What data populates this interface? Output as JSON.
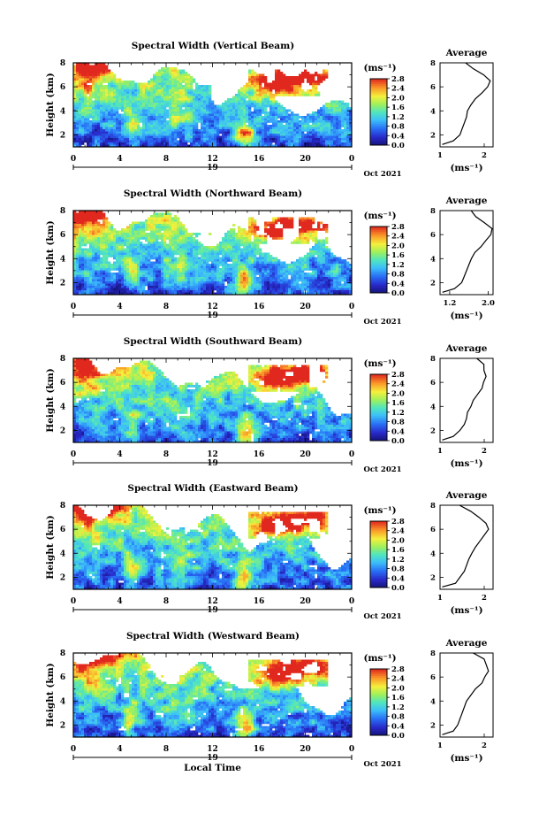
{
  "chart_data": [
    {
      "type": "heatmap",
      "title": "Spectral Width (Vertical Beam)",
      "ylabel": "Height (km)",
      "xlabel": "",
      "xlim": [
        0,
        24
      ],
      "ylim": [
        1,
        8
      ],
      "x_ticks": [
        "0",
        "4",
        "8",
        "12",
        "16",
        "20",
        "0"
      ],
      "y_ticks": [
        "2",
        "4",
        "6",
        "8"
      ],
      "day_label": "19",
      "date_label": "Oct 2021",
      "colorbar": {
        "unit": "(ms⁻¹)",
        "min": 0.0,
        "max": 2.8,
        "ticks": [
          "2.8",
          "2.4",
          "2.0",
          "1.6",
          "1.2",
          "0.8",
          "0.4",
          "0.0"
        ]
      },
      "average": {
        "title": "Average",
        "xlabel": "(ms⁻¹)",
        "x_ticks": [
          "1",
          "2"
        ],
        "xlim": [
          1,
          2.2
        ],
        "y_ticks": [
          "2",
          "4",
          "6",
          "8"
        ],
        "height_km": [
          1.2,
          1.5,
          2,
          2.5,
          3,
          3.5,
          4,
          4.5,
          5,
          5.5,
          6,
          6.5,
          7,
          7.5,
          8
        ],
        "width": [
          1.05,
          1.3,
          1.45,
          1.5,
          1.55,
          1.6,
          1.62,
          1.7,
          1.8,
          1.95,
          2.05,
          2.15,
          1.95,
          1.8,
          1.6
        ]
      }
    },
    {
      "type": "heatmap",
      "title": "Spectral Width (Northward Beam)",
      "ylabel": "Height (km)",
      "xlabel": "",
      "xlim": [
        0,
        24
      ],
      "ylim": [
        1,
        8
      ],
      "x_ticks": [
        "0",
        "4",
        "8",
        "12",
        "16",
        "20",
        "0"
      ],
      "y_ticks": [
        "2",
        "4",
        "6",
        "8"
      ],
      "day_label": "19",
      "date_label": "Oct 2021",
      "colorbar": {
        "unit": "(ms⁻¹)",
        "min": 0.0,
        "max": 2.8,
        "ticks": [
          "2.8",
          "2.4",
          "2.0",
          "1.6",
          "1.2",
          "0.8",
          "0.4",
          "0.0"
        ]
      },
      "average": {
        "title": "Average",
        "xlabel": "(ms⁻¹)",
        "x_ticks": [
          "1.2",
          "2.0"
        ],
        "xlim": [
          1,
          2.1
        ],
        "y_ticks": [
          "2",
          "4",
          "6",
          "8"
        ],
        "height_km": [
          1.2,
          1.5,
          2,
          2.5,
          3,
          3.5,
          4,
          4.5,
          5,
          5.5,
          6,
          6.5,
          7,
          7.5,
          8
        ],
        "width": [
          1.05,
          1.3,
          1.45,
          1.5,
          1.55,
          1.6,
          1.65,
          1.72,
          1.85,
          1.95,
          2.05,
          2.05,
          1.9,
          1.75,
          1.6
        ]
      }
    },
    {
      "type": "heatmap",
      "title": "Spectral Width (Southward Beam)",
      "ylabel": "Height (km)",
      "xlabel": "",
      "xlim": [
        0,
        24
      ],
      "ylim": [
        1,
        8
      ],
      "x_ticks": [
        "0",
        "4",
        "8",
        "12",
        "16",
        "20",
        "0"
      ],
      "y_ticks": [
        "2",
        "4",
        "6",
        "8"
      ],
      "day_label": "19",
      "date_label": "Oct 2021",
      "colorbar": {
        "unit": "(ms⁻¹)",
        "min": 0.0,
        "max": 2.8,
        "ticks": [
          "2.8",
          "2.4",
          "2.0",
          "1.6",
          "1.2",
          "0.8",
          "0.4",
          "0.0"
        ]
      },
      "average": {
        "title": "Average",
        "xlabel": "(ms⁻¹)",
        "x_ticks": [
          "1",
          "2"
        ],
        "xlim": [
          1,
          2.2
        ],
        "y_ticks": [
          "2",
          "4",
          "6",
          "8"
        ],
        "height_km": [
          1.2,
          1.5,
          2,
          2.5,
          3,
          3.5,
          4,
          4.5,
          5,
          5.5,
          6,
          6.5,
          7,
          7.5,
          8
        ],
        "width": [
          1.05,
          1.3,
          1.45,
          1.55,
          1.6,
          1.62,
          1.7,
          1.75,
          1.85,
          1.95,
          2.0,
          2.05,
          2.0,
          1.95,
          1.85
        ]
      }
    },
    {
      "type": "heatmap",
      "title": "Spectral Width (Eastward Beam)",
      "ylabel": "Height (km)",
      "xlabel": "",
      "xlim": [
        0,
        24
      ],
      "ylim": [
        1,
        8
      ],
      "x_ticks": [
        "0",
        "4",
        "8",
        "12",
        "16",
        "20",
        "0"
      ],
      "y_ticks": [
        "2",
        "4",
        "6",
        "8"
      ],
      "day_label": "19",
      "date_label": "Oct 2021",
      "colorbar": {
        "unit": "(ms⁻¹)",
        "min": 0.0,
        "max": 2.8,
        "ticks": [
          "2.8",
          "2.4",
          "2.0",
          "1.6",
          "1.2",
          "0.8",
          "0.4",
          "0.0"
        ]
      },
      "average": {
        "title": "Average",
        "xlabel": "(ms⁻¹)",
        "x_ticks": [
          "1",
          "2"
        ],
        "xlim": [
          1,
          2.2
        ],
        "y_ticks": [
          "2",
          "4",
          "6",
          "8"
        ],
        "height_km": [
          1.2,
          1.5,
          2,
          2.5,
          3,
          3.5,
          4,
          4.5,
          5,
          5.5,
          6,
          6.5,
          7,
          7.5,
          8
        ],
        "width": [
          1.05,
          1.35,
          1.45,
          1.55,
          1.6,
          1.65,
          1.72,
          1.8,
          1.9,
          2.0,
          2.1,
          2.05,
          1.85,
          1.65,
          1.45
        ]
      }
    },
    {
      "type": "heatmap",
      "title": "Spectral Width (Westward Beam)",
      "ylabel": "Height (km)",
      "xlabel": "Local Time",
      "xlim": [
        0,
        24
      ],
      "ylim": [
        1,
        8
      ],
      "x_ticks": [
        "0",
        "4",
        "8",
        "12",
        "16",
        "20",
        "0"
      ],
      "y_ticks": [
        "2",
        "4",
        "6",
        "8"
      ],
      "day_label": "19",
      "date_label": "Oct 2021",
      "colorbar": {
        "unit": "(ms⁻¹)",
        "min": 0.0,
        "max": 2.8,
        "ticks": [
          "2.8",
          "2.4",
          "2.0",
          "1.6",
          "1.2",
          "0.8",
          "0.4",
          "0.0"
        ]
      },
      "average": {
        "title": "Average",
        "xlabel": "(ms⁻¹)",
        "x_ticks": [
          "1",
          "2"
        ],
        "xlim": [
          1,
          2.2
        ],
        "y_ticks": [
          "2",
          "4",
          "6",
          "8"
        ],
        "height_km": [
          1.2,
          1.5,
          2,
          2.5,
          3,
          3.5,
          4,
          4.5,
          5,
          5.5,
          6,
          6.5,
          7,
          7.5,
          8
        ],
        "width": [
          1.05,
          1.3,
          1.4,
          1.45,
          1.5,
          1.55,
          1.6,
          1.7,
          1.8,
          1.95,
          2.05,
          2.1,
          2.05,
          1.95,
          1.8
        ]
      }
    }
  ]
}
